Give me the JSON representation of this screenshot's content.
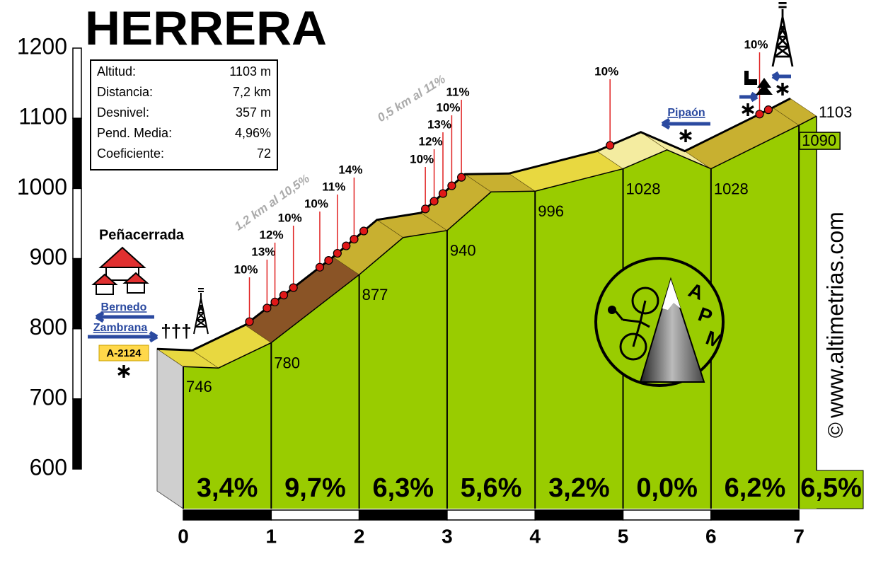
{
  "chart_data": {
    "type": "elevation-profile",
    "title": "HERRERA",
    "info_box": {
      "rows": [
        [
          "Altitud:",
          "1103 m"
        ],
        [
          "Distancia:",
          "7,2 km"
        ],
        [
          "Desnivel:",
          "357 m"
        ],
        [
          "Pend. Media:",
          "4,96%"
        ],
        [
          "Coeficiente:",
          "72"
        ]
      ]
    },
    "x": [
      0,
      0.4,
      1,
      2,
      2.5,
      3,
      3.5,
      4,
      5,
      5.5,
      6,
      7,
      7.2
    ],
    "values": [
      746,
      744,
      780,
      877,
      930,
      940,
      995,
      996,
      1028,
      1055,
      1028,
      1090,
      1103
    ],
    "value_labels": [
      "746",
      null,
      "780",
      "877",
      null,
      "940",
      null,
      "996",
      "1028",
      null,
      "1028",
      "1090",
      "1103"
    ],
    "color": "#99cc00",
    "segments": {
      "values": [
        3.4,
        9.7,
        6.3,
        5.6,
        3.2,
        0,
        6.2,
        6.5
      ],
      "value_labels": [
        "3,4%",
        "9,7%",
        "6,3%",
        "5,6%",
        "3,2%",
        "0,0%",
        "6,2%",
        "6,5%"
      ]
    },
    "markers": [
      {
        "x": 1.05,
        "label": "10%"
      },
      {
        "x": 1.25,
        "label": "13%"
      },
      {
        "x": 1.34,
        "label": "12%"
      },
      {
        "x": 1.44
      },
      {
        "x": 1.55,
        "label": "10%"
      },
      {
        "x": 1.85,
        "label": "10%"
      },
      {
        "x": 1.95
      },
      {
        "x": 2.05,
        "label": "11%"
      },
      {
        "x": 2.15
      },
      {
        "x": 2.24,
        "label": "14%"
      },
      {
        "x": 2.35
      },
      {
        "x": 3.05,
        "label": "10%"
      },
      {
        "x": 3.15,
        "label": "12%"
      },
      {
        "x": 3.25,
        "label": "13%"
      },
      {
        "x": 3.35,
        "label": "10%"
      },
      {
        "x": 3.46,
        "label": "11%"
      },
      {
        "x": 5.15,
        "label": "10%"
      },
      {
        "x": 6.85,
        "label": "10%"
      },
      {
        "x": 6.95
      }
    ],
    "annotations": [
      "1,2 km al 10,5%",
      "0,5 km al 11%"
    ],
    "places": {
      "start": "Peñacerrada",
      "road_left": "Bernedo",
      "road_right": "Zambrana",
      "road_code": "A-2124",
      "crosses": "†††",
      "pass_road": "Pipaón"
    },
    "logo_letters": [
      "A",
      "P",
      "M"
    ],
    "watermark": "www.altimetrias.com",
    "copyright": "©",
    "xlim": [
      0,
      7.2
    ],
    "xticks": [
      0,
      1,
      2,
      3,
      4,
      5,
      6,
      7
    ],
    "ylim": [
      600,
      1200
    ],
    "yticks": [
      600,
      700,
      800,
      900,
      1000,
      1100,
      1200
    ]
  }
}
